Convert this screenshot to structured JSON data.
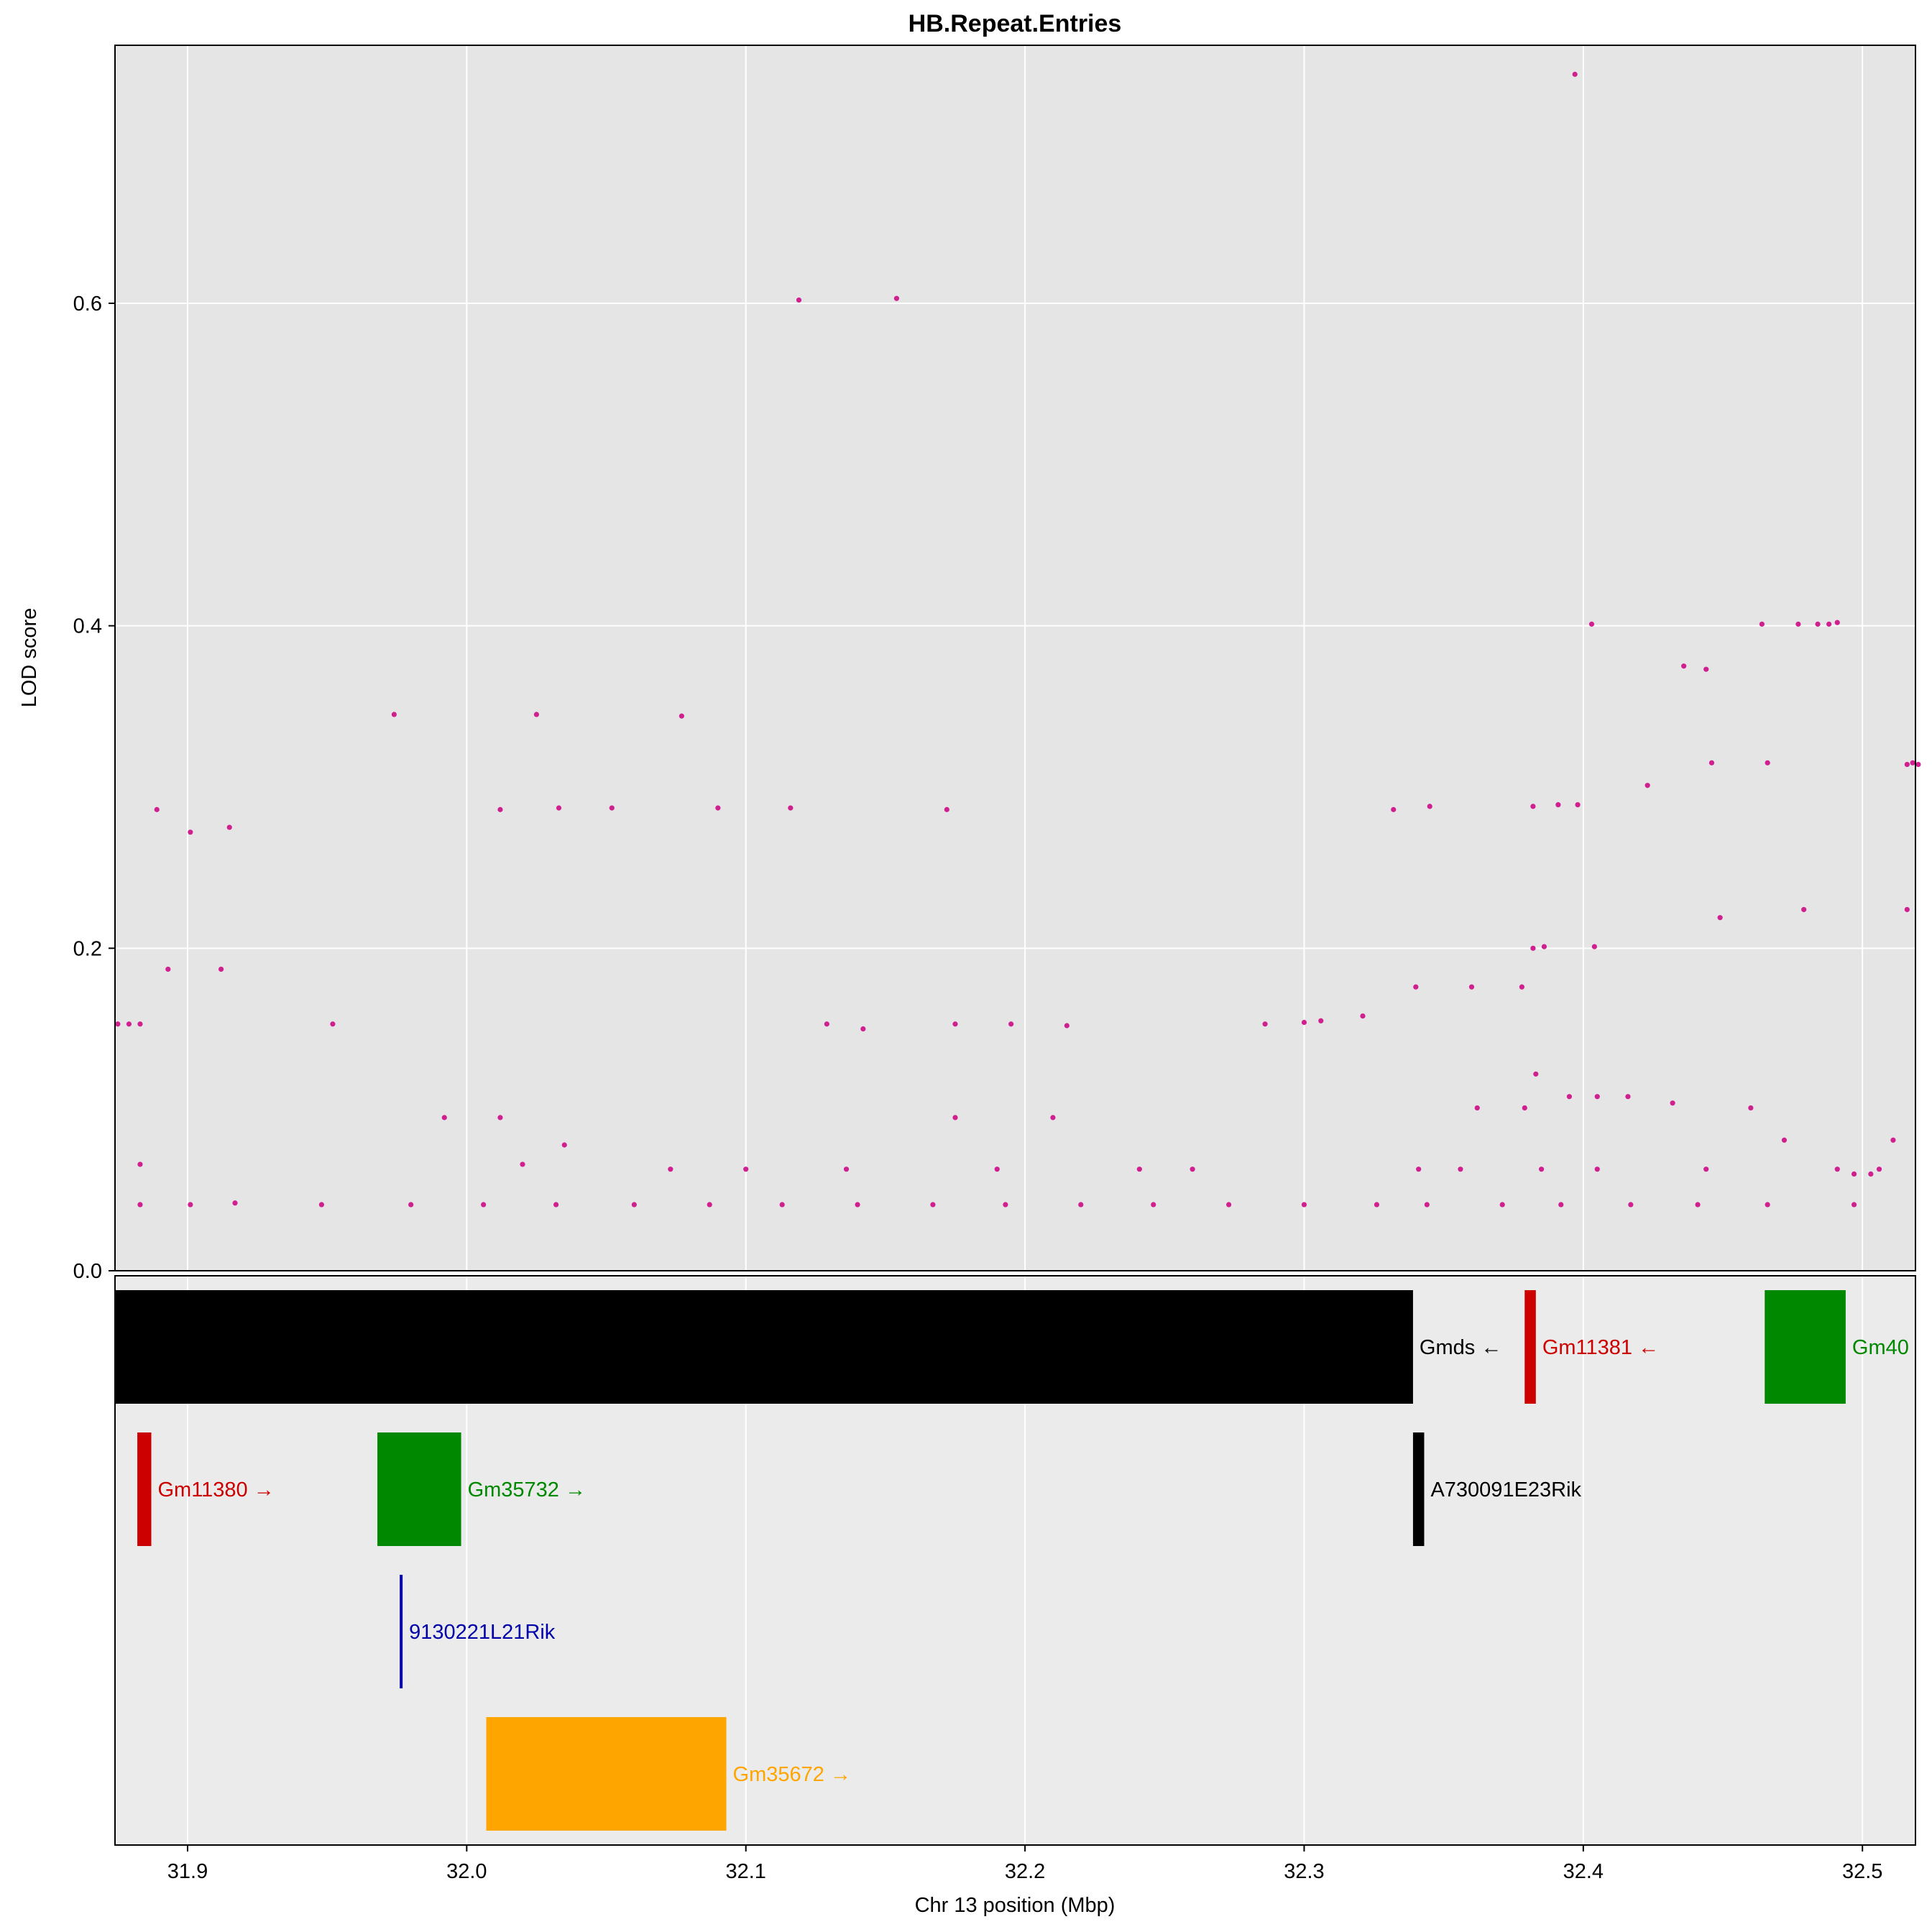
{
  "chart_data": {
    "type": "scatter",
    "title": "HB.Repeat.Entries",
    "xlabel": "Chr 13 position (Mbp)",
    "ylabel": "LOD score",
    "xlim": [
      31.874,
      32.519
    ],
    "ylim": [
      0,
      0.76
    ],
    "x_ticks": [
      31.9,
      32.0,
      32.1,
      32.2,
      32.3,
      32.4,
      32.5
    ],
    "x_tick_labels": [
      "31.9",
      "32.0",
      "32.1",
      "32.2",
      "32.3",
      "32.4",
      "32.5"
    ],
    "y_ticks": [
      0.0,
      0.2,
      0.4,
      0.6
    ],
    "y_tick_labels": [
      "0.0",
      "0.2",
      "0.4",
      "0.6"
    ],
    "grid": true,
    "point_color": "#D02090",
    "panel_background": "#E5E5E5",
    "gene_panel_background": "#EBEBEB",
    "series": [
      {
        "x": [
          32.397,
          32.119,
          32.154,
          32.444,
          32.436,
          32.403,
          31.974,
          32.025,
          32.077,
          32.464,
          32.477,
          32.484,
          32.488,
          32.491,
          32.449,
          32.479,
          32.516,
          32.518,
          32.516,
          32.382,
          32.391,
          32.398,
          32.386,
          32.404,
          32.332,
          32.345,
          32.378,
          32.383,
          32.395,
          32.423,
          32.446,
          32.466,
          32.52,
          31.875,
          31.879,
          31.883,
          31.952,
          31.893,
          31.912,
          31.889,
          32.012,
          32.033,
          32.052,
          31.915,
          32.09,
          32.116,
          32.142,
          32.172,
          32.286,
          32.3,
          32.306,
          32.382,
          31.901,
          32.129,
          32.175,
          32.195,
          32.215,
          32.321,
          32.34,
          32.36,
          32.362,
          32.379,
          32.405,
          32.416,
          32.432,
          32.46,
          32.472,
          32.511,
          31.883,
          31.901,
          31.917,
          31.948,
          31.98,
          32.006,
          32.032,
          32.06,
          32.087,
          32.113,
          32.14,
          32.167,
          32.193,
          32.22,
          32.246,
          32.273,
          32.3,
          32.326,
          32.344,
          32.371,
          32.392,
          32.417,
          32.441,
          32.466,
          32.497,
          32.012,
          32.035,
          31.992,
          32.175,
          32.21,
          31.883,
          32.02,
          32.073,
          32.1,
          32.136,
          32.19,
          32.241,
          32.26,
          32.341,
          32.356,
          32.385,
          32.405,
          32.444,
          32.491,
          32.497,
          32.503,
          32.506
        ],
        "y": [
          0.742,
          0.602,
          0.603,
          0.373,
          0.375,
          0.401,
          0.345,
          0.345,
          0.344,
          0.401,
          0.401,
          0.401,
          0.401,
          0.402,
          0.219,
          0.224,
          0.224,
          0.315,
          0.314,
          0.288,
          0.289,
          0.289,
          0.201,
          0.201,
          0.286,
          0.288,
          0.176,
          0.122,
          0.108,
          0.301,
          0.315,
          0.315,
          0.314,
          0.153,
          0.153,
          0.153,
          0.153,
          0.187,
          0.187,
          0.286,
          0.286,
          0.287,
          0.287,
          0.275,
          0.287,
          0.287,
          0.15,
          0.286,
          0.153,
          0.154,
          0.155,
          0.2,
          0.272,
          0.153,
          0.153,
          0.153,
          0.152,
          0.158,
          0.176,
          0.176,
          0.101,
          0.101,
          0.108,
          0.108,
          0.104,
          0.101,
          0.081,
          0.081,
          0.041,
          0.041,
          0.042,
          0.041,
          0.041,
          0.041,
          0.041,
          0.041,
          0.041,
          0.041,
          0.041,
          0.041,
          0.041,
          0.041,
          0.041,
          0.041,
          0.041,
          0.041,
          0.041,
          0.041,
          0.041,
          0.041,
          0.041,
          0.041,
          0.041,
          0.095,
          0.078,
          0.095,
          0.095,
          0.095,
          0.066,
          0.066,
          0.063,
          0.063,
          0.063,
          0.063,
          0.063,
          0.063,
          0.063,
          0.063,
          0.063,
          0.063,
          0.063,
          0.063,
          0.06,
          0.06,
          0.063
        ]
      }
    ],
    "genes": [
      {
        "name": "Gmds",
        "start": 31.874,
        "end": 32.339,
        "row": 1,
        "strand": "-",
        "color": "#000000"
      },
      {
        "name": "Gm11381",
        "start": 32.379,
        "end": 32.383,
        "row": 1,
        "strand": "-",
        "color": "#CC0000"
      },
      {
        "name": "Gm40",
        "start": 32.465,
        "end": 32.494,
        "row": 1,
        "strand": "",
        "color": "#008800"
      },
      {
        "name": "Gm11380",
        "start": 31.882,
        "end": 31.887,
        "row": 2,
        "strand": "+",
        "color": "#CC0000"
      },
      {
        "name": "Gm35732",
        "start": 31.968,
        "end": 31.998,
        "row": 2,
        "strand": "+",
        "color": "#008800"
      },
      {
        "name": "A730091E23Rik",
        "start": 32.339,
        "end": 32.343,
        "row": 2,
        "strand": "",
        "color": "#000000"
      },
      {
        "name": "9130221L21Rik",
        "start": 31.976,
        "end": 31.977,
        "row": 3,
        "strand": "",
        "color": "#0000AA"
      },
      {
        "name": "Gm35672",
        "start": 32.007,
        "end": 32.093,
        "row": 4,
        "strand": "+",
        "color": "#FFA500"
      }
    ]
  }
}
